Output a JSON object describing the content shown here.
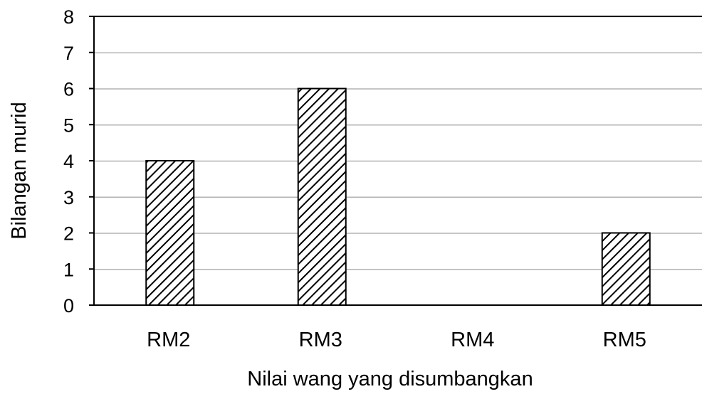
{
  "chart_data": {
    "type": "bar",
    "categories": [
      "RM2",
      "RM3",
      "RM4",
      "RM5"
    ],
    "values": [
      4,
      6,
      0,
      2
    ],
    "title": "",
    "xlabel": "Nilai wang yang disumbangkan",
    "ylabel": "Bilangan murid",
    "ylim": [
      0,
      8
    ],
    "yticks": [
      0,
      1,
      2,
      3,
      4,
      5,
      6,
      7,
      8
    ],
    "grid": true,
    "bar_fill": "diagonal-hatch",
    "colors": {
      "bar_stroke": "#000000",
      "hatch": "#000000",
      "gridline": "#b3b3b3",
      "axis": "#000000",
      "background": "#ffffff"
    }
  }
}
